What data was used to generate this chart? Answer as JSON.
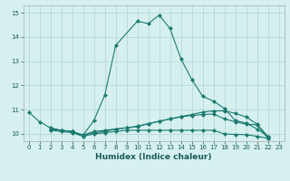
{
  "xlabel": "Humidex (Indice chaleur)",
  "bg_color": "#d6f0f0",
  "grid_color": "#b8d8d8",
  "line_color": "#1a7a6e",
  "xlim": [
    -0.5,
    23.5
  ],
  "ylim": [
    9.7,
    15.3
  ],
  "xticks": [
    0,
    1,
    2,
    3,
    4,
    5,
    6,
    7,
    8,
    9,
    10,
    11,
    12,
    13,
    14,
    15,
    16,
    17,
    18,
    19,
    20,
    21,
    22,
    23
  ],
  "yticks": [
    10,
    11,
    12,
    13,
    14,
    15
  ],
  "series": [
    {
      "x": [
        0,
        1,
        2,
        3,
        4,
        5,
        6,
        7,
        8,
        10,
        11,
        12,
        13,
        14,
        15,
        16,
        17,
        18,
        19,
        20,
        21,
        22
      ],
      "y": [
        10.9,
        10.5,
        10.25,
        10.15,
        10.1,
        9.95,
        10.55,
        11.6,
        13.65,
        14.65,
        14.55,
        14.9,
        14.35,
        13.1,
        12.25,
        11.55,
        11.35,
        11.05,
        10.55,
        10.45,
        10.2,
        9.9
      ]
    },
    {
      "x": [
        2,
        3,
        4,
        5,
        6,
        7,
        8,
        9,
        10,
        11,
        12,
        13,
        14,
        15,
        16,
        17,
        18,
        19,
        20,
        21,
        22
      ],
      "y": [
        10.2,
        10.15,
        10.1,
        9.95,
        10.1,
        10.15,
        10.2,
        10.25,
        10.3,
        10.42,
        10.52,
        10.62,
        10.72,
        10.8,
        10.9,
        10.95,
        10.95,
        10.85,
        10.7,
        10.4,
        9.9
      ]
    },
    {
      "x": [
        2,
        3,
        4,
        5,
        6,
        7,
        8,
        9,
        10,
        11,
        12,
        13,
        14,
        15,
        16,
        17,
        18,
        19,
        20,
        21,
        22
      ],
      "y": [
        10.2,
        10.15,
        10.1,
        9.95,
        10.05,
        10.1,
        10.2,
        10.25,
        10.32,
        10.42,
        10.52,
        10.62,
        10.7,
        10.76,
        10.8,
        10.82,
        10.62,
        10.5,
        10.4,
        10.38,
        9.82
      ]
    },
    {
      "x": [
        2,
        3,
        4,
        5,
        6,
        7,
        8,
        9,
        10,
        11,
        12,
        13,
        14,
        15,
        16,
        17,
        18,
        19,
        20,
        21,
        22
      ],
      "y": [
        10.15,
        10.1,
        10.05,
        9.9,
        10.0,
        10.05,
        10.1,
        10.15,
        10.15,
        10.15,
        10.15,
        10.15,
        10.15,
        10.15,
        10.15,
        10.15,
        10.0,
        9.98,
        9.97,
        9.9,
        9.82
      ]
    }
  ]
}
